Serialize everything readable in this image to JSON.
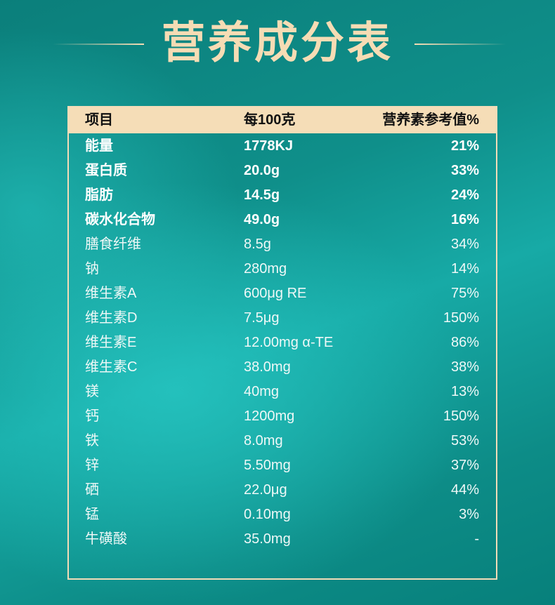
{
  "title": "营养成分表",
  "colors": {
    "accent": "#f6dcb4",
    "header_bg": "#f5ddb7",
    "background": "#0f8f8a"
  },
  "table": {
    "headers": [
      "项目",
      "每100克",
      "营养素参考值%"
    ],
    "rows": [
      {
        "item": "能量",
        "amount": "1778KJ",
        "nrv": "21%",
        "bold": true
      },
      {
        "item": "蛋白质",
        "amount": "20.0g",
        "nrv": "33%",
        "bold": true
      },
      {
        "item": "脂肪",
        "amount": "14.5g",
        "nrv": "24%",
        "bold": true
      },
      {
        "item": "碳水化合物",
        "amount": "49.0g",
        "nrv": "16%",
        "bold": true
      },
      {
        "item": "膳食纤维",
        "amount": "8.5g",
        "nrv": "34%"
      },
      {
        "item": "钠",
        "amount": "280mg",
        "nrv": "14%"
      },
      {
        "item": "维生素A",
        "amount": "600μg RE",
        "nrv": "75%"
      },
      {
        "item": "维生素D",
        "amount": "7.5μg",
        "nrv": "150%"
      },
      {
        "item": "维生素E",
        "amount": "12.00mg α-TE",
        "nrv": "86%"
      },
      {
        "item": "维生素C",
        "amount": "38.0mg",
        "nrv": "38%"
      },
      {
        "item": "镁",
        "amount": "40mg",
        "nrv": "13%"
      },
      {
        "item": "钙",
        "amount": "1200mg",
        "nrv": "150%"
      },
      {
        "item": "铁",
        "amount": "8.0mg",
        "nrv": "53%"
      },
      {
        "item": "锌",
        "amount": "5.50mg",
        "nrv": "37%"
      },
      {
        "item": "硒",
        "amount": "22.0μg",
        "nrv": "44%"
      },
      {
        "item": "锰",
        "amount": "0.10mg",
        "nrv": "3%"
      },
      {
        "item": "牛磺酸",
        "amount": "35.0mg",
        "nrv": "-"
      }
    ]
  }
}
